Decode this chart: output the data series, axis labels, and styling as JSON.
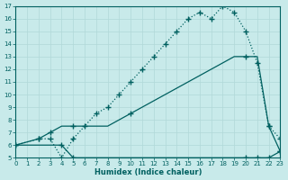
{
  "xlabel": "Humidex (Indice chaleur)",
  "bg_color": "#c8eaea",
  "line_color": "#006060",
  "grid_color": "#b0d8d8",
  "xlim": [
    0,
    23
  ],
  "ylim": [
    5,
    17
  ],
  "xticks": [
    0,
    1,
    2,
    3,
    4,
    5,
    6,
    7,
    8,
    9,
    10,
    11,
    12,
    13,
    14,
    15,
    16,
    17,
    18,
    19,
    20,
    21,
    22,
    23
  ],
  "yticks": [
    5,
    6,
    7,
    8,
    9,
    10,
    11,
    12,
    13,
    14,
    15,
    16,
    17
  ],
  "line_dotted_x": [
    0,
    2,
    3,
    4,
    5,
    6,
    7,
    8,
    9,
    10,
    11,
    12,
    13,
    14,
    15,
    16,
    17,
    18,
    19,
    20,
    21,
    22,
    23
  ],
  "line_dotted_y": [
    6,
    6.5,
    6.5,
    5,
    6.5,
    7.5,
    8.5,
    9,
    10,
    11,
    12,
    13,
    14,
    15,
    16,
    16.5,
    16,
    17,
    16.5,
    15,
    12.5,
    7.5,
    6.5
  ],
  "line_mid_x": [
    0,
    2,
    3,
    4,
    5,
    6,
    7,
    8,
    9,
    10,
    11,
    12,
    13,
    14,
    15,
    16,
    17,
    18,
    19,
    20,
    21,
    22,
    23
  ],
  "line_mid_y": [
    6,
    6.5,
    7,
    7.5,
    7.5,
    7.5,
    7.5,
    7.5,
    8,
    8.5,
    9,
    9.5,
    10,
    10.5,
    11,
    11.5,
    12,
    12.5,
    13,
    13,
    13,
    7.5,
    5.5
  ],
  "line_flat_x": [
    0,
    4,
    5,
    20,
    21,
    22,
    23
  ],
  "line_flat_y": [
    6,
    6,
    5,
    5,
    5,
    5,
    5.5
  ]
}
